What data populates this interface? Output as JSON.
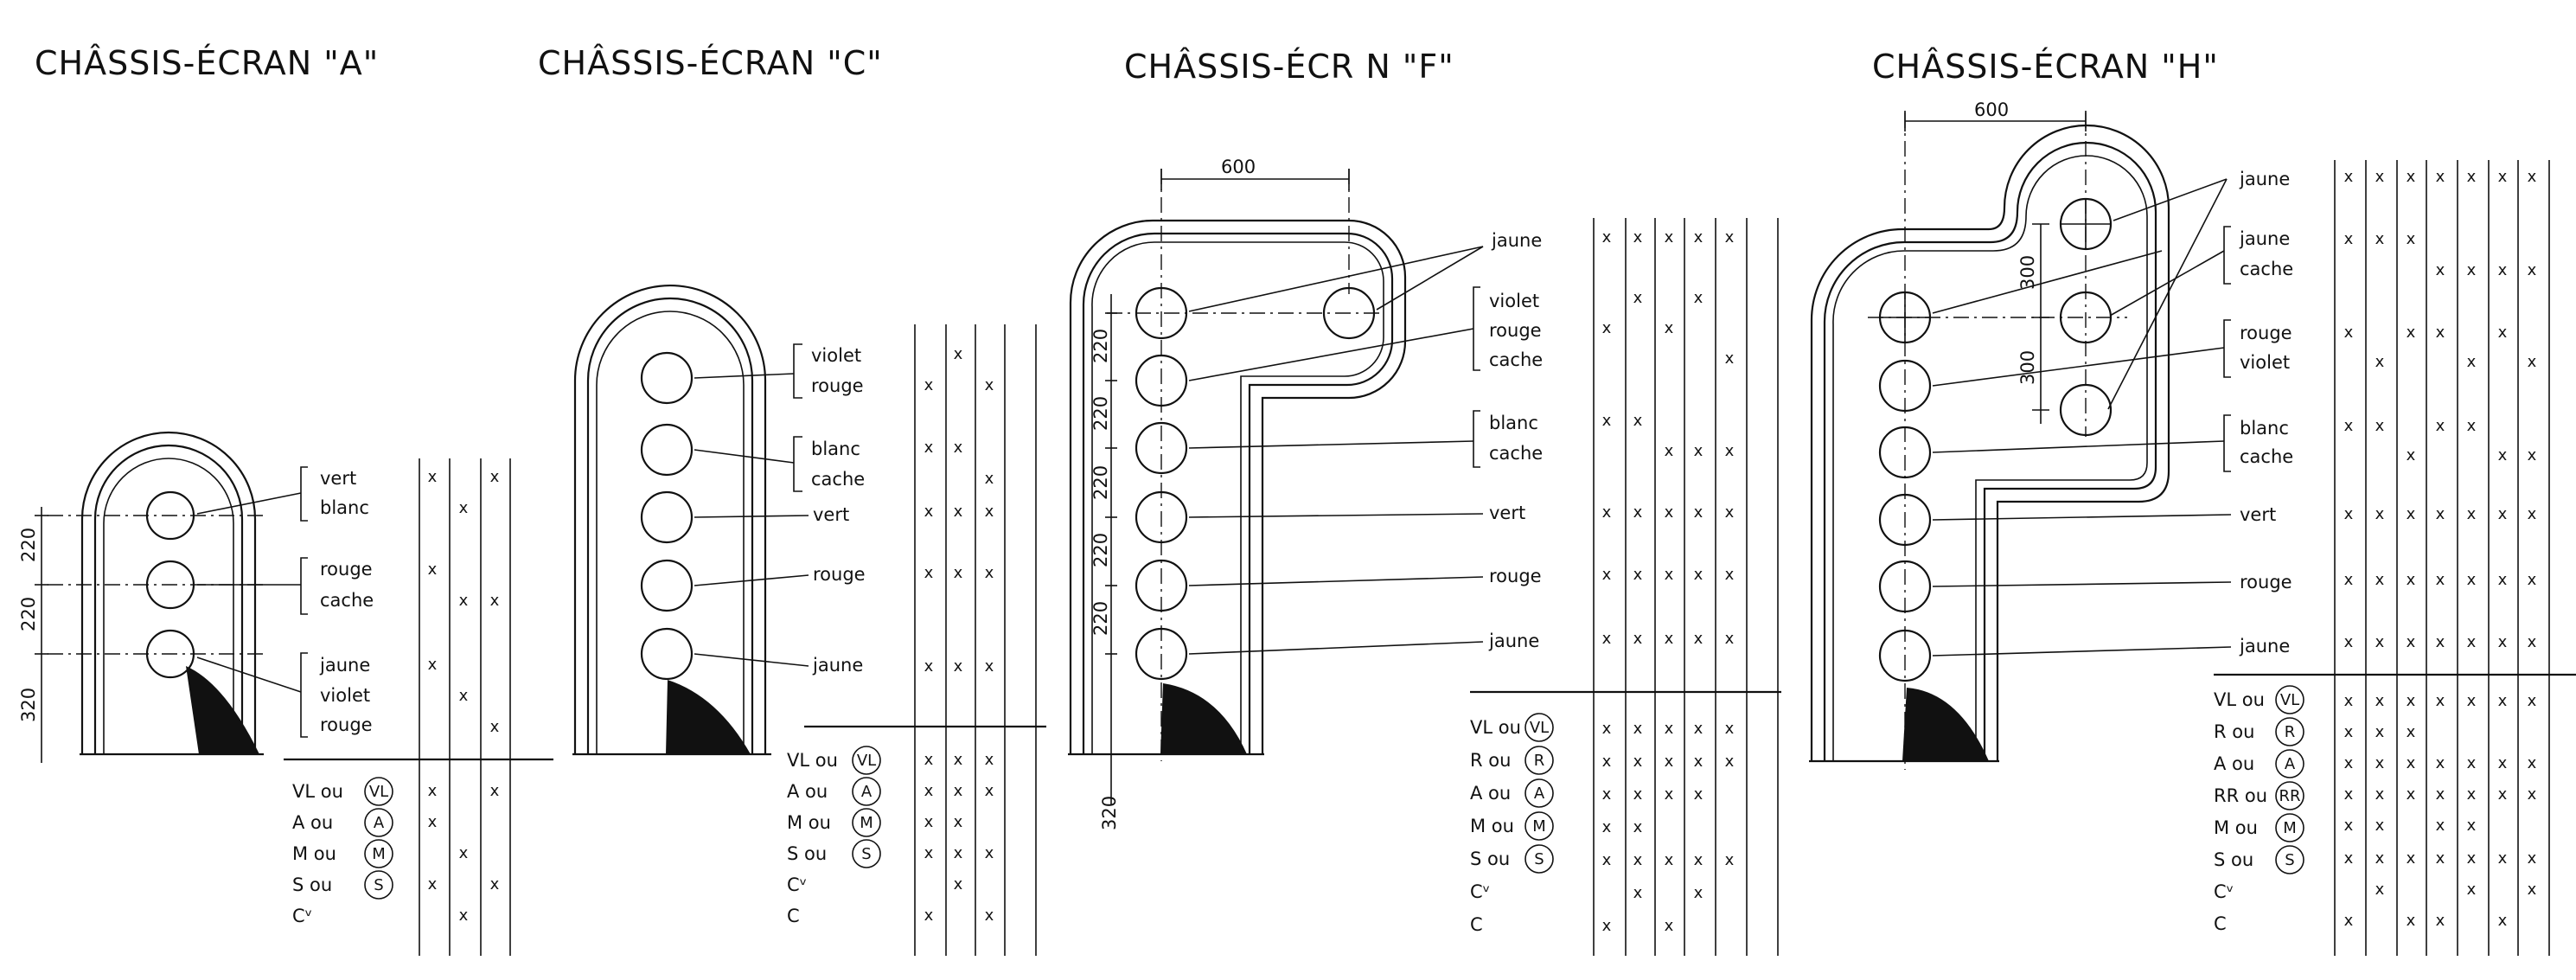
{
  "titles": [
    "CHÂSSIS-ÉCRAN \"A\"",
    "CHÂSSIS-ÉCRAN \"C\"",
    "CHÂSSIS-ÉCR N \"F\"",
    "CHÂSSIS-ÉCRAN \"H\""
  ],
  "mark": "x",
  "circle_mark": {
    "VL": "VL",
    "A": "A",
    "M": "M",
    "S": "S",
    "R": "R",
    "RR": "RR"
  },
  "panels": [
    {
      "id": "A",
      "dims": [
        "220",
        "220",
        "320"
      ],
      "labels": [
        [
          "vert",
          "blanc"
        ],
        [
          "rouge",
          "cache"
        ],
        [
          "jaune",
          "violet",
          "rouge"
        ]
      ],
      "bottom_rows": [
        "VL ou",
        "A ou",
        "M ou",
        "S ou",
        "Cᵛ"
      ],
      "bottom_circles": [
        "VL",
        "A",
        "M",
        "S",
        ""
      ]
    },
    {
      "id": "C",
      "labels": [
        [
          "violet",
          "rouge"
        ],
        [
          "blanc",
          "cache"
        ],
        [
          "vert"
        ],
        [
          "rouge"
        ],
        [
          "jaune"
        ]
      ],
      "bottom_rows": [
        "VL ou",
        "A ou",
        "M ou",
        "S ou",
        "Cᵛ",
        "C"
      ],
      "bottom_circles": [
        "VL",
        "A",
        "M",
        "S",
        "",
        ""
      ]
    },
    {
      "id": "F",
      "dims_top": "600",
      "dims": [
        "220",
        "220",
        "220",
        "220",
        "220",
        "320"
      ],
      "labels": [
        [
          "jaune"
        ],
        [
          "violet",
          "rouge",
          "cache"
        ],
        [
          "blanc",
          "cache"
        ],
        [
          "vert"
        ],
        [
          "rouge"
        ],
        [
          "jaune"
        ]
      ],
      "bottom_rows": [
        "VL ou",
        "R ou",
        "A ou",
        "M ou",
        "S ou",
        "Cᵛ",
        "C"
      ],
      "bottom_circles": [
        "VL",
        "R",
        "A",
        "M",
        "S",
        "",
        ""
      ]
    },
    {
      "id": "H",
      "dims_top": "600",
      "dims": [
        "300",
        "300"
      ],
      "labels": [
        [
          "jaune"
        ],
        [
          "jaune",
          "cache"
        ],
        [
          "rouge",
          "violet"
        ],
        [
          "blanc",
          "cache"
        ],
        [
          "vert"
        ],
        [
          "rouge"
        ],
        [
          "jaune"
        ]
      ],
      "bottom_rows": [
        "VL ou",
        "R ou",
        "A ou",
        "RR ou",
        "M ou",
        "S ou",
        "Cᵛ",
        "C"
      ],
      "bottom_circles": [
        "VL",
        "R",
        "A",
        "RR",
        "M",
        "S",
        "",
        ""
      ]
    }
  ]
}
